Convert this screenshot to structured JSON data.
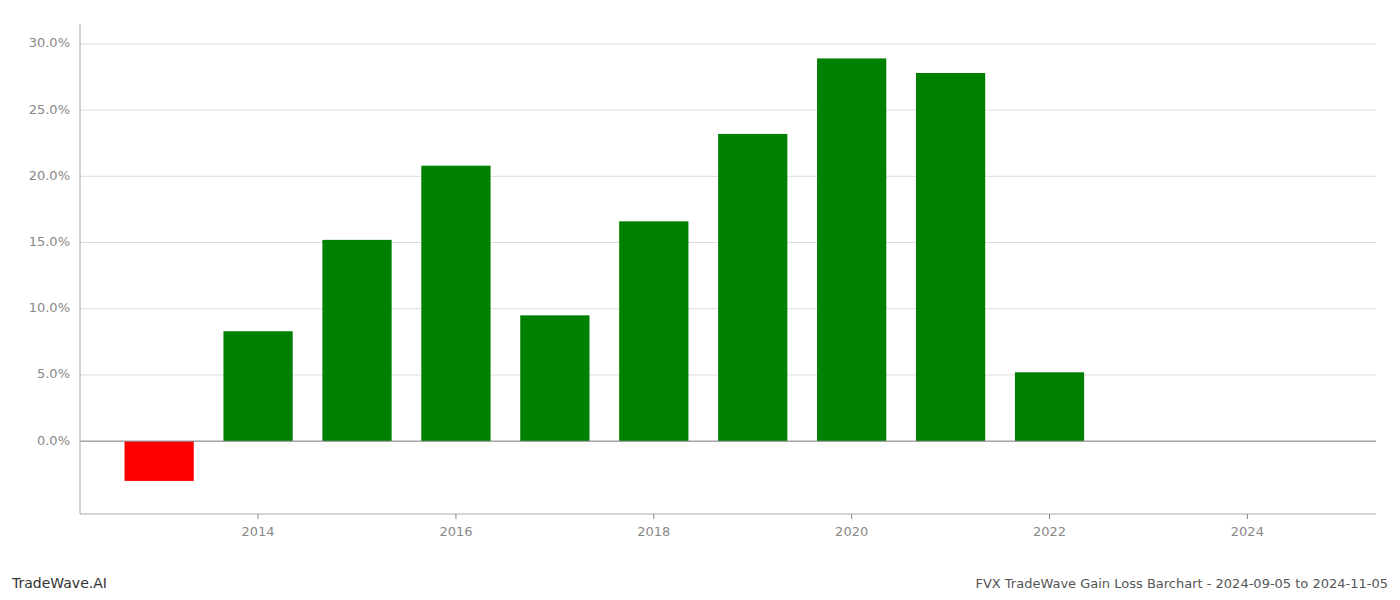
{
  "chart_data": {
    "type": "bar",
    "title": "FVX TradeWave Gain Loss Barchart - 2024-09-05 to 2024-11-05",
    "annotations": [
      "TradeWave.AI"
    ],
    "x": [
      2013,
      2014,
      2015,
      2016,
      2017,
      2018,
      2019,
      2020,
      2021,
      2022,
      2023
    ],
    "values": [
      -0.03,
      0.083,
      0.152,
      0.208,
      0.095,
      0.166,
      0.232,
      0.289,
      0.278,
      0.052,
      0.0
    ],
    "colors": [
      "#ff0000",
      "#008000",
      "#008000",
      "#008000",
      "#008000",
      "#008000",
      "#008000",
      "#008000",
      "#008000",
      "#008000",
      "#008000"
    ],
    "xlim": [
      2012.2,
      2025.3
    ],
    "xticks": [
      2014,
      2016,
      2018,
      2020,
      2022,
      2024
    ],
    "ylim": [
      -0.055,
      0.315
    ],
    "yticks": [
      {
        "value": 0.0,
        "label": "0.0%"
      },
      {
        "value": 0.05,
        "label": "5.0%"
      },
      {
        "value": 0.1,
        "label": "10.0%"
      },
      {
        "value": 0.15,
        "label": "15.0%"
      },
      {
        "value": 0.2,
        "label": "20.0%"
      },
      {
        "value": 0.25,
        "label": "25.0%"
      },
      {
        "value": 0.3,
        "label": "30.0%"
      }
    ],
    "grid": true
  }
}
